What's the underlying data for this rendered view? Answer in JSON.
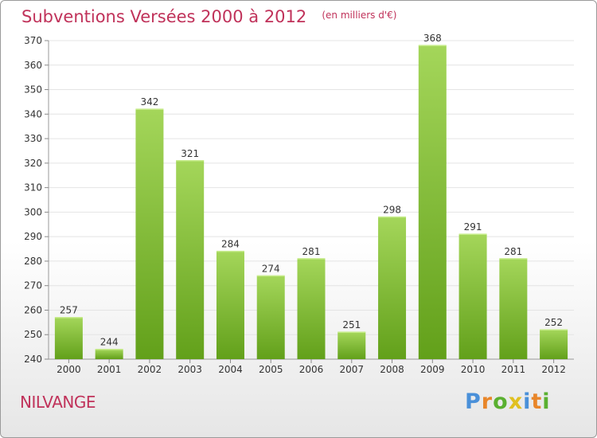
{
  "title": "Subventions Versées 2000 à 2012",
  "subtitle": "(en milliers d'€)",
  "location": "NILVANGE",
  "logo": {
    "text": "Proxiti",
    "letters": [
      {
        "ch": "P",
        "color": "#4a90d9"
      },
      {
        "ch": "r",
        "color": "#e8862a"
      },
      {
        "ch": "o",
        "color": "#5ab030"
      },
      {
        "ch": "x",
        "color": "#e0c020"
      },
      {
        "ch": "i",
        "color": "#4a90d9"
      },
      {
        "ch": "t",
        "color": "#e8862a"
      },
      {
        "ch": "i",
        "color": "#5ab030"
      }
    ]
  },
  "colors": {
    "accent": "#c0325a",
    "bar_top": "#a4d65a",
    "bar_bottom": "#62a01a",
    "grid": "#e4e4e4",
    "axis_text": "#333333"
  },
  "chart_data": {
    "type": "bar",
    "categories": [
      "2000",
      "2001",
      "2002",
      "2003",
      "2004",
      "2005",
      "2006",
      "2007",
      "2008",
      "2009",
      "2010",
      "2011",
      "2012"
    ],
    "values": [
      257,
      244,
      342,
      321,
      284,
      274,
      281,
      251,
      298,
      368,
      291,
      281,
      252
    ],
    "ylim": [
      240,
      370
    ],
    "yticks": [
      240,
      250,
      260,
      270,
      280,
      290,
      300,
      310,
      320,
      330,
      340,
      350,
      360,
      370
    ],
    "grid": true,
    "data_labels": true
  }
}
